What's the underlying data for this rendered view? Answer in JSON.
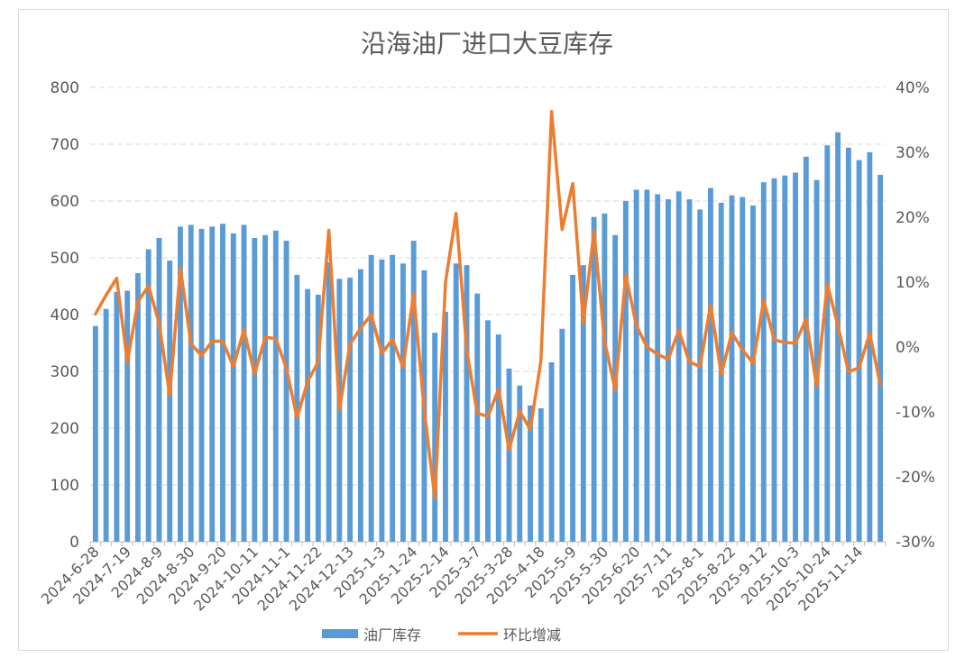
{
  "chart_data": {
    "type": "bar+line",
    "title": "沿海油厂进口大豆库存",
    "x_tick_labels": [
      "2024-6-28",
      "2024-7-19",
      "2024-8-9",
      "2024-8-30",
      "2024-9-20",
      "2024-10-11",
      "2024-11-1",
      "2024-11-22",
      "2024-12-13",
      "2025-1-3",
      "2025-1-24",
      "2025-2-14",
      "2025-3-7",
      "2025-3-28",
      "2025-4-18",
      "2025-5-9",
      "2025-5-30",
      "2025-6-20",
      "2025-7-11",
      "2025-8-1",
      "2025-8-22",
      "2025-9-12",
      "2025-10-3",
      "2025-10-24",
      "2025-11-14"
    ],
    "x_tick_every": 3,
    "y_left": {
      "min": 0,
      "max": 800,
      "step": 100,
      "tick_labels": [
        "0",
        "100",
        "200",
        "300",
        "400",
        "500",
        "600",
        "700",
        "800"
      ]
    },
    "y_right": {
      "min": -30,
      "max": 40,
      "step": 10,
      "unit": "%",
      "tick_labels": [
        "-30%",
        "-20%",
        "-10%",
        "0%",
        "10%",
        "20%",
        "30%",
        "40%"
      ]
    },
    "series": [
      {
        "name": "油厂库存",
        "kind": "bar",
        "axis": "left",
        "color": "#5B9BD5",
        "values": [
          380,
          410,
          440,
          442,
          473,
          515,
          535,
          495,
          555,
          558,
          551,
          555,
          560,
          543,
          558,
          535,
          540,
          548,
          530,
          470,
          445,
          435,
          492,
          463,
          465,
          480,
          505,
          497,
          505,
          490,
          530,
          478,
          368,
          405,
          490,
          487,
          437,
          390,
          365,
          305,
          275,
          240,
          235,
          316,
          375,
          470,
          487,
          572,
          578,
          540,
          600,
          620,
          620,
          612,
          603,
          617,
          603,
          585,
          623,
          597,
          610,
          607,
          592,
          633,
          640,
          645,
          650,
          678,
          637,
          698,
          721,
          694,
          672,
          686,
          646
        ]
      },
      {
        "name": "环比增减",
        "kind": "line",
        "axis": "right",
        "color": "#ED7D31",
        "values": [
          5.1,
          8.0,
          10.6,
          -2.3,
          7.0,
          9.4,
          3.7,
          -7.4,
          12.2,
          0.5,
          -1.3,
          0.9,
          0.9,
          -3.0,
          2.7,
          -4.2,
          1.5,
          1.3,
          -3.3,
          -10.9,
          -5.3,
          -2.3,
          18.0,
          -9.6,
          0.4,
          2.9,
          5.0,
          -1.0,
          1.2,
          -3.1,
          8.2,
          -9.8,
          -23.3,
          10.0,
          20.6,
          -0.5,
          -10.2,
          -10.7,
          -6.5,
          -15.8,
          -9.9,
          -12.7,
          -2.1,
          36.3,
          18.1,
          25.2,
          3.7,
          17.8,
          0.9,
          -6.6,
          11.1,
          3.3,
          0.0,
          -1.1,
          -1.9,
          2.6,
          -2.3,
          -3.0,
          6.5,
          -4.2,
          2.2,
          -0.4,
          -2.5,
          7.2,
          1.1,
          0.7,
          0.6,
          4.3,
          -6.1,
          9.7,
          3.3,
          -3.8,
          -3.2,
          2.1,
          -5.8
        ]
      }
    ],
    "grid": true,
    "legend_position": "bottom"
  }
}
